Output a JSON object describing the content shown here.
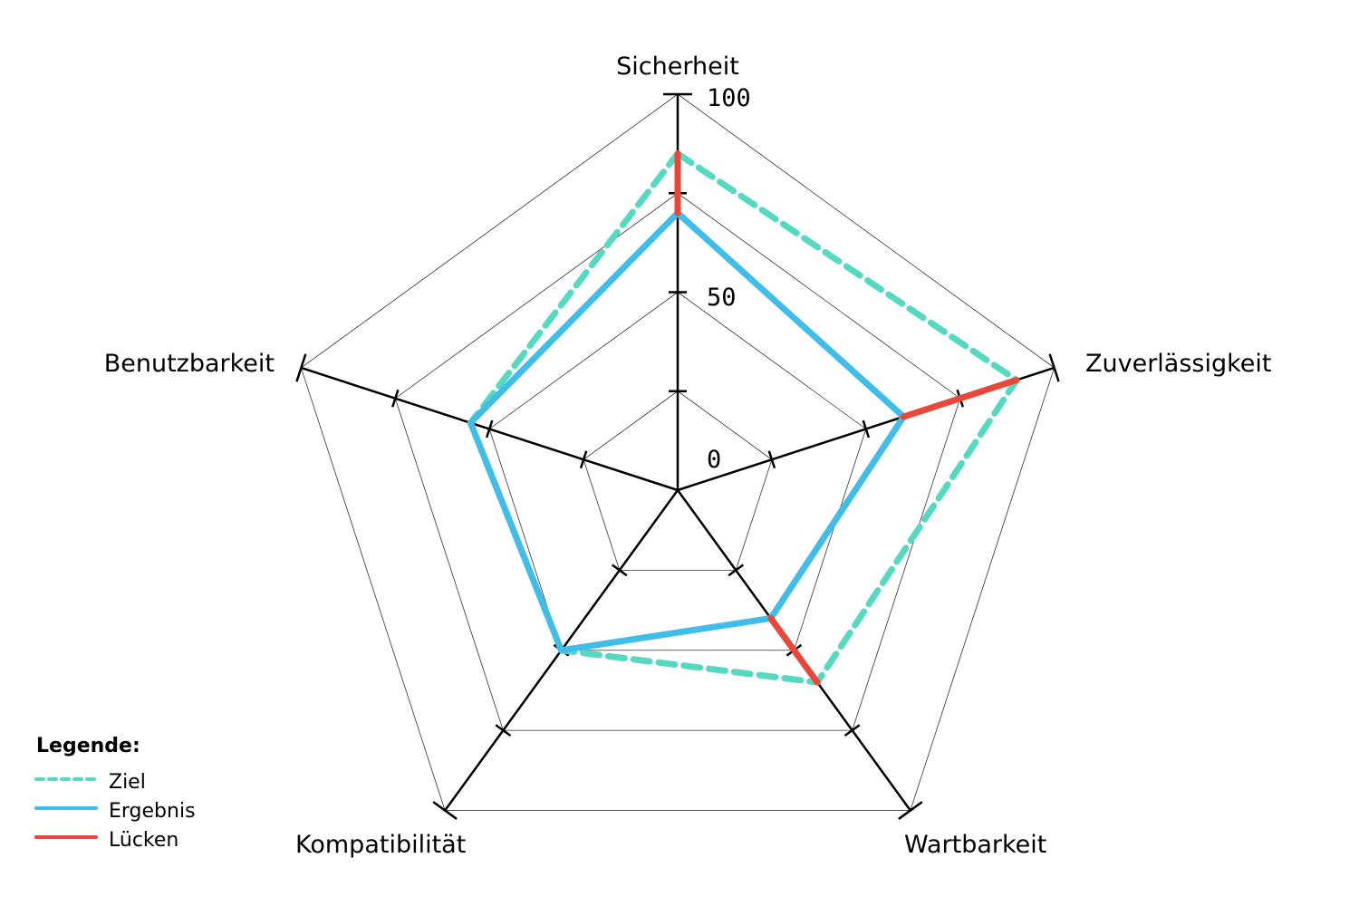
{
  "chart_data": {
    "type": "radar",
    "axes": [
      "Sicherheit",
      "Zuverlässigkeit",
      "Wartbarkeit",
      "Kompatibilität",
      "Benutzbarkeit"
    ],
    "range": [
      0,
      100
    ],
    "grid_levels": [
      25,
      50,
      75,
      100
    ],
    "tick_labels": [
      "0",
      "50",
      "100"
    ],
    "series": [
      {
        "name": "Ziel",
        "values": [
          85,
          90,
          60,
          50,
          55
        ],
        "color": "#55d9c0",
        "style": "dashed"
      },
      {
        "name": "Ergebnis",
        "values": [
          70,
          60,
          40,
          50,
          55
        ],
        "color": "#41bde9",
        "style": "solid"
      },
      {
        "name": "Lücken",
        "color": "#e8483a",
        "style": "solid"
      }
    ],
    "legend": {
      "title": "Legende:",
      "placement": "bottom-left"
    },
    "grid": true
  }
}
